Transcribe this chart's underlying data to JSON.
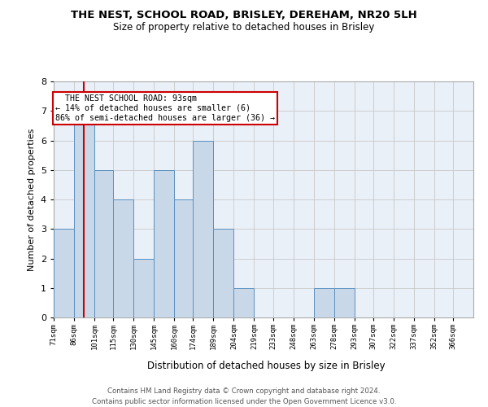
{
  "title1": "THE NEST, SCHOOL ROAD, BRISLEY, DEREHAM, NR20 5LH",
  "title2": "Size of property relative to detached houses in Brisley",
  "xlabel": "Distribution of detached houses by size in Brisley",
  "ylabel": "Number of detached properties",
  "footnote": "Contains HM Land Registry data © Crown copyright and database right 2024.\nContains public sector information licensed under the Open Government Licence v3.0.",
  "bin_labels": [
    "71sqm",
    "86sqm",
    "101sqm",
    "115sqm",
    "130sqm",
    "145sqm",
    "160sqm",
    "174sqm",
    "189sqm",
    "204sqm",
    "219sqm",
    "233sqm",
    "248sqm",
    "263sqm",
    "278sqm",
    "293sqm",
    "307sqm",
    "322sqm",
    "337sqm",
    "352sqm",
    "366sqm"
  ],
  "bar_values": [
    3,
    7,
    5,
    4,
    2,
    5,
    4,
    6,
    3,
    1,
    0,
    0,
    0,
    1,
    1,
    0,
    0,
    0,
    0,
    0,
    0
  ],
  "bar_color": "#c8d8e8",
  "bar_edge_color": "#5a8fc0",
  "grid_color": "#c8c8c8",
  "annotation_box_color": "#cc0000",
  "subject_line_color": "#cc0000",
  "subject_value": 93,
  "annotation_text": "  THE NEST SCHOOL ROAD: 93sqm  \n← 14% of detached houses are smaller (6)\n86% of semi-detached houses are larger (36) →",
  "ylim": [
    0,
    8
  ],
  "yticks": [
    0,
    1,
    2,
    3,
    4,
    5,
    6,
    7,
    8
  ],
  "bin_edges": [
    71,
    86,
    101,
    115,
    130,
    145,
    160,
    174,
    189,
    204,
    219,
    233,
    248,
    263,
    278,
    293,
    307,
    322,
    337,
    352,
    366,
    381
  ]
}
